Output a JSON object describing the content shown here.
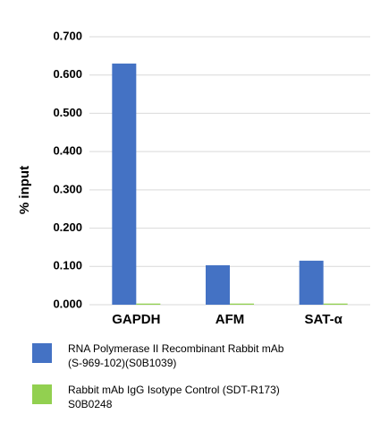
{
  "chart_data": {
    "type": "bar",
    "y_label": "% input",
    "categories": [
      "GAPDH",
      "AFM",
      "SAT-α"
    ],
    "series": [
      {
        "name": "RNA Polymerase II Recombinant Rabbit mAb (S-969-102)(S0B1039)",
        "color": "#4472c4",
        "values": [
          0.63,
          0.103,
          0.115
        ]
      },
      {
        "name": "Rabbit mAb IgG Isotype Control (SDT-R173) S0B0248",
        "color": "#92d050",
        "values": [
          0.003,
          0.003,
          0.003
        ]
      }
    ],
    "ylim": [
      0,
      0.7
    ],
    "yticks": [
      {
        "value": 0,
        "label": "0.000"
      },
      {
        "value": 0.1,
        "label": "0.100"
      },
      {
        "value": 0.2,
        "label": "0.200"
      },
      {
        "value": 0.3,
        "label": "0.300"
      },
      {
        "value": 0.4,
        "label": "0.400"
      },
      {
        "value": 0.5,
        "label": "0.500"
      },
      {
        "value": 0.6,
        "label": "0.600"
      },
      {
        "value": 0.7,
        "label": "0.700"
      }
    ],
    "grid": true
  }
}
